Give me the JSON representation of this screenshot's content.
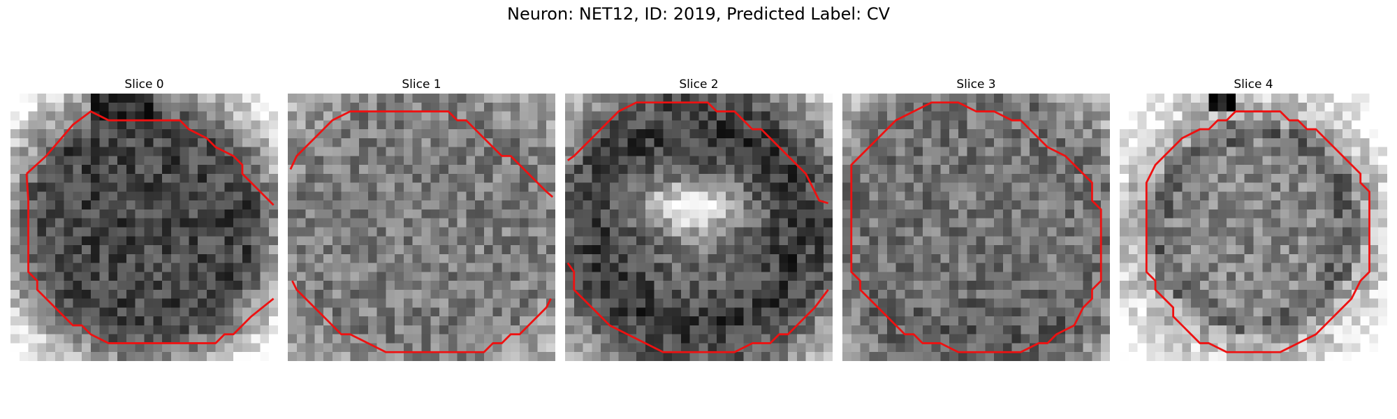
{
  "figure": {
    "suptitle": "Neuron: NET12, ID: 2019, Predicted Label: CV",
    "contour_color": "#ee1111"
  },
  "slices": [
    {
      "title": "Slice 0",
      "seed": 11,
      "pattern": "dark_center_light_edges"
    },
    {
      "title": "Slice 1",
      "seed": 23,
      "pattern": "speckled_mid"
    },
    {
      "title": "Slice 2",
      "seed": 37,
      "pattern": "dark_ring_bright_center"
    },
    {
      "title": "Slice 3",
      "seed": 51,
      "pattern": "speckled_mid_dark"
    },
    {
      "title": "Slice 4",
      "seed": 67,
      "pattern": "mid_center_light_edges"
    }
  ]
}
